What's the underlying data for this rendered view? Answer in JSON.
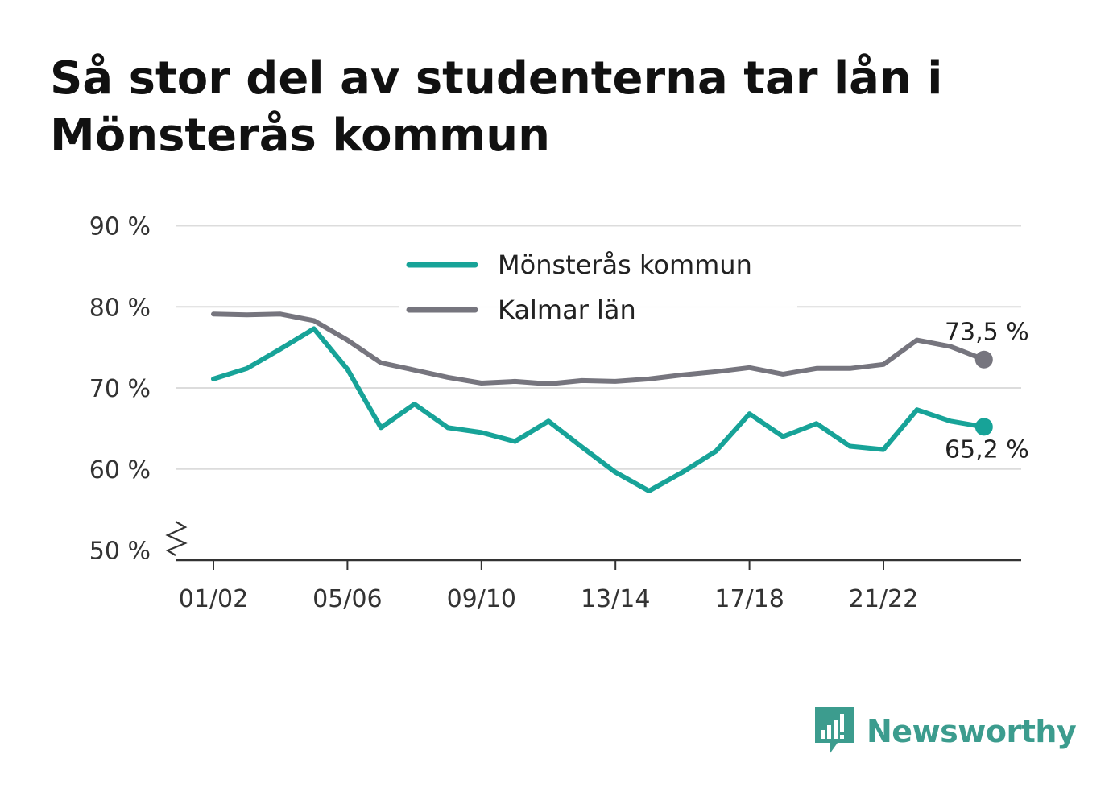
{
  "title": "Så stor del av studenterna tar lån i Mönsterås kommun",
  "brand": {
    "name": "Newsworthy",
    "logo_icon": "newsworthy-bar-chart-speech-bubble-icon",
    "color": "#3c9c8e"
  },
  "chart_data": {
    "type": "line",
    "title": "Så stor del av studenterna tar lån i Mönsterås kommun",
    "xlabel": "",
    "ylabel": "",
    "x": [
      "01/02",
      "02/03",
      "03/04",
      "04/05",
      "05/06",
      "06/07",
      "07/08",
      "08/09",
      "09/10",
      "10/11",
      "11/12",
      "12/13",
      "13/14",
      "14/15",
      "15/16",
      "16/17",
      "17/18",
      "18/19",
      "19/20",
      "20/21",
      "21/22",
      "22/23",
      "23/24",
      "24/25"
    ],
    "x_tick_labels": [
      "01/02",
      "05/06",
      "09/10",
      "13/14",
      "17/18",
      "21/22"
    ],
    "y_tick_labels": [
      "50 %",
      "60 %",
      "70 %",
      "80 %",
      "90 %"
    ],
    "ylim": [
      50,
      90
    ],
    "y_axis_break": true,
    "grid": true,
    "legend_position": "top-center",
    "series": [
      {
        "name": "Mönsterås kommun",
        "color": "#17a398",
        "values": [
          71.1,
          72.4,
          74.8,
          77.3,
          72.3,
          65.1,
          68.0,
          65.1,
          64.5,
          63.4,
          65.9,
          62.7,
          59.6,
          57.3,
          59.6,
          62.2,
          66.8,
          64.0,
          65.6,
          62.8,
          62.4,
          67.3,
          65.9,
          65.2
        ],
        "end_label": "65,2 %"
      },
      {
        "name": "Kalmar län",
        "color": "#76757e",
        "values": [
          79.1,
          79.0,
          79.1,
          78.3,
          75.9,
          73.1,
          72.2,
          71.3,
          70.6,
          70.8,
          70.5,
          70.9,
          70.8,
          71.1,
          71.6,
          72.0,
          72.5,
          71.7,
          72.4,
          72.4,
          72.9,
          75.9,
          75.1,
          73.5
        ],
        "end_label": "73,5 %"
      }
    ]
  }
}
